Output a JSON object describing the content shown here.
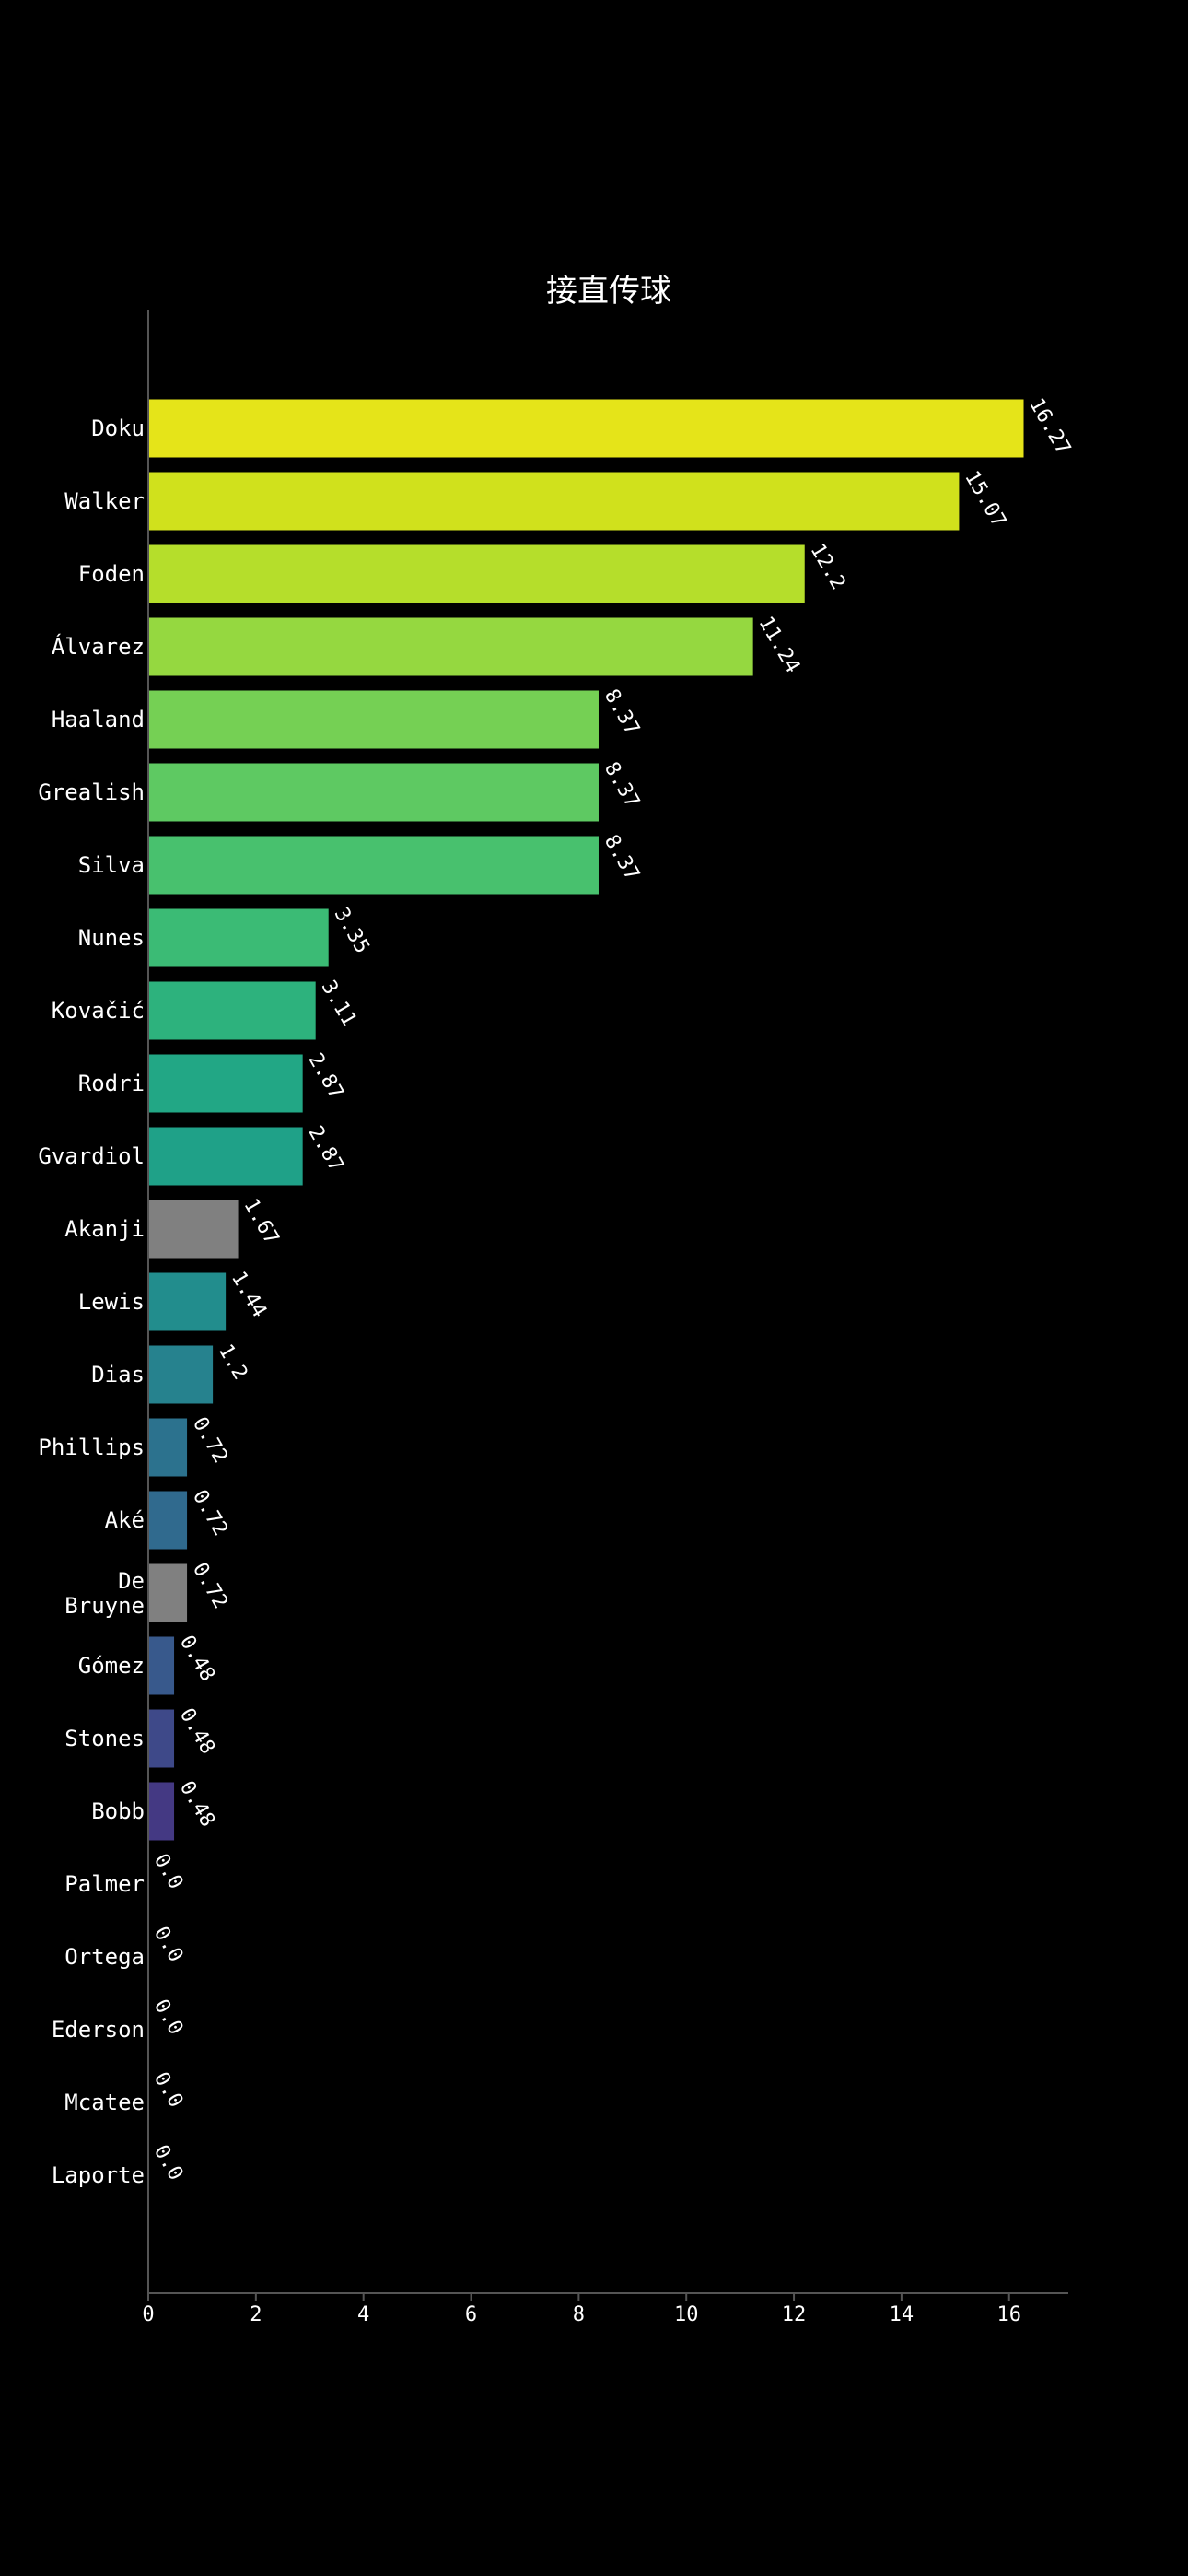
{
  "chart_data": {
    "type": "bar",
    "orientation": "horizontal",
    "title": "接直传球",
    "xlabel": "",
    "ylabel": "",
    "xlim": [
      0,
      17.1
    ],
    "xticks": [
      0,
      2,
      4,
      6,
      8,
      10,
      12,
      14,
      16
    ],
    "grid": false,
    "categories": [
      "Doku",
      "Walker",
      "Foden",
      "Álvarez",
      "Haaland",
      "Grealish",
      "Silva",
      "Nunes",
      "Kovačić",
      "Rodri",
      "Gvardiol",
      "Akanji",
      "Lewis",
      "Dias",
      "Phillips",
      "Aké",
      "De Bruyne",
      "Gómez",
      "Stones",
      "Bobb",
      "Palmer",
      "Ortega",
      "Ederson",
      "Mcatee",
      "Laporte"
    ],
    "values": [
      16.27,
      15.07,
      12.2,
      11.24,
      8.37,
      8.37,
      8.37,
      3.35,
      3.11,
      2.87,
      2.87,
      1.67,
      1.44,
      1.2,
      0.72,
      0.72,
      0.72,
      0.48,
      0.48,
      0.48,
      0.0,
      0.0,
      0.0,
      0.0,
      0.0
    ],
    "value_labels": [
      "16.27",
      "15.07",
      "12.2",
      "11.24",
      "8.37",
      "8.37",
      "8.37",
      "3.35",
      "3.11",
      "2.87",
      "2.87",
      "1.67",
      "1.44",
      "1.2",
      "0.72",
      "0.72",
      "0.72",
      "0.48",
      "0.48",
      "0.48",
      "0.0",
      "0.0",
      "0.0",
      "0.0",
      "0.0"
    ],
    "colors": [
      "#e5e419",
      "#d0e11c",
      "#b5de2b",
      "#95d840",
      "#75d054",
      "#5ec962",
      "#48c16e",
      "#3bbb75",
      "#2db27d",
      "#22a785",
      "#1fa188",
      "#808080",
      "#228d8d",
      "#26828e",
      "#2c728e",
      "#306a8e",
      "#808080",
      "#38598c",
      "#3e4989",
      "#443983",
      "#46327e",
      "#482475",
      "#471365",
      "#470d60",
      "#440154"
    ]
  }
}
